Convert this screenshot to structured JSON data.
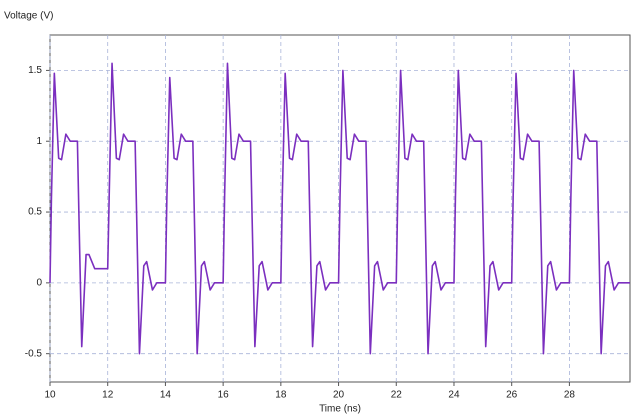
{
  "chart_data": {
    "type": "line",
    "ylabel": "Voltage (V)",
    "xlabel": "Time (ns)",
    "color": "#7b2fbf",
    "grid": true,
    "xlim": [
      10,
      30.1
    ],
    "ylim": [
      -0.7,
      1.75
    ],
    "xticks": [
      10,
      12,
      14,
      16,
      18,
      20,
      22,
      24,
      26,
      28
    ],
    "yticks": [
      -0.5,
      0,
      0.5,
      1,
      1.5
    ],
    "x": [
      10,
      10.05,
      10.15,
      10.3,
      10.4,
      10.55,
      10.7,
      10.95,
      11,
      11.1,
      11.25,
      11.35,
      11.55,
      11.7,
      12,
      12.05,
      12.15,
      12.3,
      12.4,
      12.55,
      12.7,
      12.95,
      13,
      13.1,
      13.25,
      13.35,
      13.55,
      13.7,
      14,
      14.05,
      14.15,
      14.3,
      14.4,
      14.55,
      14.7,
      14.95,
      15,
      15.1,
      15.25,
      15.35,
      15.55,
      15.7,
      16,
      16.05,
      16.15,
      16.3,
      16.4,
      16.55,
      16.7,
      16.95,
      17,
      17.1,
      17.25,
      17.35,
      17.55,
      17.7,
      18,
      18.05,
      18.15,
      18.3,
      18.4,
      18.55,
      18.7,
      18.95,
      19,
      19.1,
      19.25,
      19.35,
      19.55,
      19.7,
      20,
      20.05,
      20.15,
      20.3,
      20.4,
      20.55,
      20.7,
      20.95,
      21,
      21.1,
      21.25,
      21.35,
      21.55,
      21.7,
      22,
      22.05,
      22.15,
      22.3,
      22.4,
      22.55,
      22.7,
      22.95,
      23,
      23.1,
      23.25,
      23.35,
      23.55,
      23.7,
      24,
      24.05,
      24.15,
      24.3,
      24.4,
      24.55,
      24.7,
      24.95,
      25,
      25.1,
      25.25,
      25.35,
      25.55,
      25.7,
      26,
      26.05,
      26.15,
      26.3,
      26.4,
      26.55,
      26.7,
      26.95,
      27,
      27.1,
      27.25,
      27.35,
      27.55,
      27.7,
      28,
      28.05,
      28.15,
      28.3,
      28.4,
      28.55,
      28.7,
      28.95,
      29,
      29.1,
      29.25,
      29.35,
      29.55,
      29.7,
      30.1
    ],
    "values": [
      0,
      0.6,
      1.48,
      0.88,
      0.87,
      1.05,
      1.0,
      1.0,
      0.5,
      -0.45,
      0.2,
      0.2,
      0.1,
      0.1,
      0.1,
      0.6,
      1.55,
      0.88,
      0.87,
      1.05,
      1.0,
      1.0,
      0.5,
      -0.5,
      0.12,
      0.15,
      -0.05,
      0,
      0,
      0.6,
      1.45,
      0.88,
      0.87,
      1.05,
      1.0,
      1.0,
      0.5,
      -0.5,
      0.12,
      0.15,
      -0.05,
      0,
      0,
      0.6,
      1.55,
      0.88,
      0.87,
      1.05,
      1.0,
      1.0,
      0.5,
      -0.45,
      0.12,
      0.15,
      -0.05,
      0,
      0,
      0.6,
      1.48,
      0.88,
      0.87,
      1.05,
      1.0,
      1.0,
      0.5,
      -0.45,
      0.12,
      0.15,
      -0.05,
      0,
      0,
      0.6,
      1.5,
      0.88,
      0.87,
      1.05,
      1.0,
      1.0,
      0.5,
      -0.5,
      0.12,
      0.15,
      -0.05,
      0,
      0,
      0.6,
      1.5,
      0.88,
      0.87,
      1.05,
      1.0,
      1.0,
      0.5,
      -0.5,
      0.12,
      0.15,
      -0.05,
      0,
      0,
      0.6,
      1.5,
      0.88,
      0.87,
      1.05,
      1.0,
      1.0,
      0.5,
      -0.45,
      0.12,
      0.15,
      -0.05,
      0,
      0,
      0.6,
      1.48,
      0.88,
      0.87,
      1.05,
      1.0,
      1.0,
      0.5,
      -0.5,
      0.12,
      0.15,
      -0.05,
      0,
      0,
      0.6,
      1.5,
      0.88,
      0.87,
      1.05,
      1.0,
      1.0,
      0.5,
      -0.5,
      0.12,
      0.15,
      -0.05,
      0,
      0
    ]
  }
}
